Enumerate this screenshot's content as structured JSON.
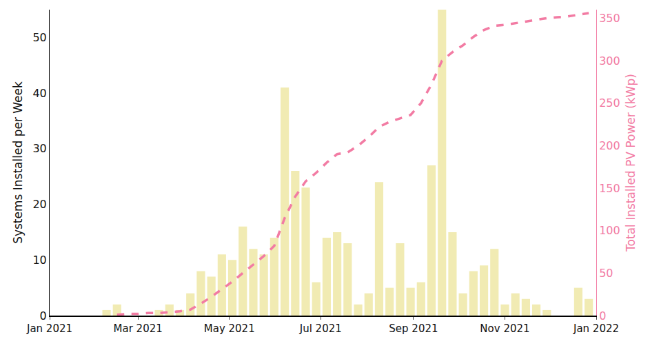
{
  "chart_data": {
    "type": "bar",
    "x": [
      "2021-02-08",
      "2021-02-15",
      "2021-02-22",
      "2021-03-01",
      "2021-03-08",
      "2021-03-15",
      "2021-03-22",
      "2021-03-29",
      "2021-04-05",
      "2021-04-12",
      "2021-04-19",
      "2021-04-26",
      "2021-05-03",
      "2021-05-10",
      "2021-05-17",
      "2021-05-24",
      "2021-05-31",
      "2021-06-07",
      "2021-06-14",
      "2021-06-21",
      "2021-06-28",
      "2021-07-05",
      "2021-07-12",
      "2021-07-19",
      "2021-07-26",
      "2021-08-02",
      "2021-08-09",
      "2021-08-16",
      "2021-08-23",
      "2021-08-30",
      "2021-09-06",
      "2021-09-13",
      "2021-09-20",
      "2021-09-27",
      "2021-10-04",
      "2021-10-11",
      "2021-10-18",
      "2021-10-25",
      "2021-11-01",
      "2021-11-08",
      "2021-11-15",
      "2021-11-22",
      "2021-11-29",
      "2021-12-06",
      "2021-12-13",
      "2021-12-20",
      "2021-12-27"
    ],
    "series": [
      {
        "name": "Systems Installed per Week",
        "type": "bar",
        "color": "#f1ebb3",
        "values": [
          1,
          2,
          0,
          0,
          0,
          1,
          2,
          1,
          4,
          8,
          7,
          11,
          10,
          16,
          12,
          11,
          14,
          41,
          26,
          23,
          6,
          14,
          15,
          13,
          2,
          4,
          24,
          5,
          13,
          5,
          6,
          27,
          55,
          15,
          4,
          8,
          9,
          12,
          2,
          4,
          3,
          2,
          1,
          0,
          0,
          5,
          3
        ]
      },
      {
        "name": "Total Installed PV Power (kWp)",
        "type": "line",
        "axis": "y2",
        "color": "#f27ba3",
        "line_style": "dashed",
        "values": [
          null,
          1,
          2,
          2,
          3,
          3,
          4,
          5,
          7,
          14,
          22,
          31,
          40,
          50,
          60,
          70,
          82,
          115,
          140,
          158,
          168,
          180,
          190,
          192,
          200,
          210,
          222,
          228,
          232,
          236,
          250,
          272,
          300,
          310,
          318,
          328,
          336,
          341,
          342,
          344,
          346,
          348,
          350,
          351,
          352,
          354,
          356
        ]
      }
    ],
    "xlim": [
      "2021-01-01",
      "2022-01-01"
    ],
    "xticks": [
      {
        "value": "2021-01-01",
        "label": "Jan 2021"
      },
      {
        "value": "2021-03-01",
        "label": "Mar 2021"
      },
      {
        "value": "2021-05-01",
        "label": "May 2021"
      },
      {
        "value": "2021-07-01",
        "label": "Jul 2021"
      },
      {
        "value": "2021-09-01",
        "label": "Sep 2021"
      },
      {
        "value": "2021-11-01",
        "label": "Nov 2021"
      },
      {
        "value": "2022-01-01",
        "label": "Jan 2022"
      }
    ],
    "y_label": "Systems Installed per Week",
    "ylim": [
      0,
      55
    ],
    "yticks": [
      0,
      10,
      20,
      30,
      40,
      50
    ],
    "y2_label": "Total Installed PV Power (kWp)",
    "y2lim": [
      0,
      360
    ],
    "y2ticks": [
      0,
      50,
      100,
      150,
      200,
      250,
      300,
      350
    ],
    "grid": false
  }
}
